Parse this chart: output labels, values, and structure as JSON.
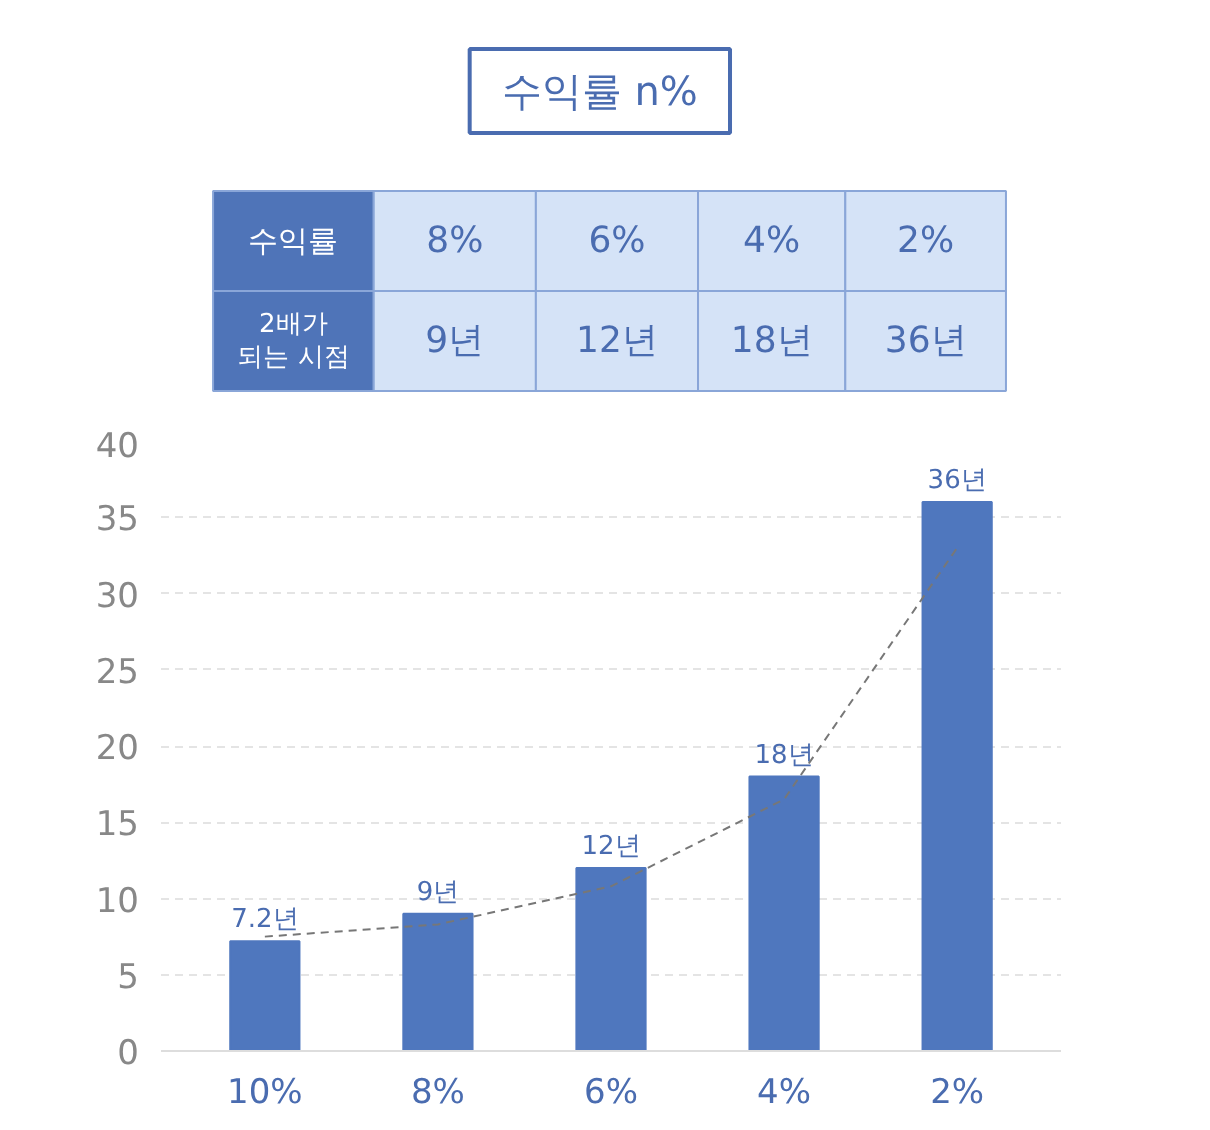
{
  "chart_data": {
    "type": "bar",
    "title": "수익률 n%",
    "categories": [
      "10%",
      "8%",
      "6%",
      "4%",
      "2%"
    ],
    "series": [
      {
        "color": "#4f77be",
        "values": [
          7.2,
          9,
          12,
          18,
          36
        ],
        "value_labels": [
          "7.2년",
          "9년",
          "12년",
          "18년",
          "36년"
        ]
      },
      {
        "type": "line",
        "color": "#777777",
        "line_style": "dashed",
        "marker": "none",
        "values": [
          7.5,
          8.3,
          10.8,
          16.5,
          33
        ]
      }
    ],
    "annotations": [
      "수익률",
      "8%",
      "6%",
      "4%",
      "2%",
      "2배가\n되는 시점",
      "9년",
      "12년",
      "18년",
      "36년"
    ],
    "ylim": [
      0,
      40
    ],
    "yticks": [
      0,
      5,
      10,
      15,
      20,
      25,
      30,
      35,
      40
    ],
    "grid": "y"
  }
}
